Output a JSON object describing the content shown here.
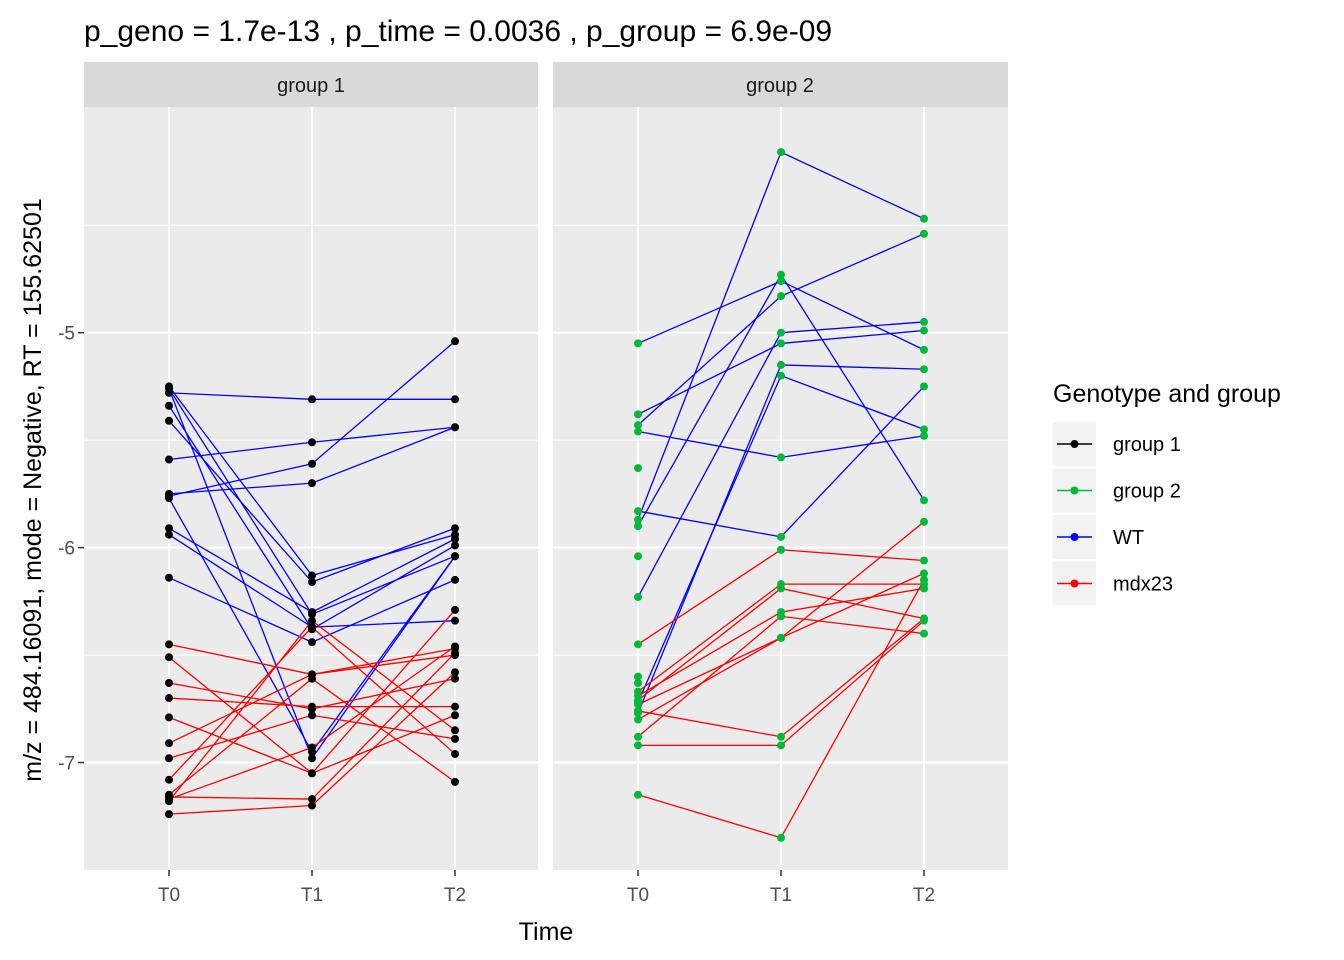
{
  "chart_data": {
    "type": "line",
    "title": "p_geno = 1.7e-13 , p_time = 0.0036 , p_group = 6.9e-09",
    "xlabel": "Time",
    "ylabel": "m/z = 484.16091, mode = Negative, RT = 155.62501",
    "ylim": [
      -7.5,
      -3.95
    ],
    "y_ticks": [
      -5,
      -6,
      -7
    ],
    "grid": true,
    "legend_position": "right",
    "x_categories": [
      "T0",
      "T1",
      "T2"
    ],
    "facets": [
      {
        "name": "group 1",
        "point_color": "#000000",
        "lines": [
          {
            "genotype": "WT",
            "values": [
              -5.28,
              -5.31,
              -5.31
            ]
          },
          {
            "genotype": "WT",
            "values": [
              -5.76,
              -5.61,
              -5.04
            ]
          },
          {
            "genotype": "WT",
            "values": [
              -5.59,
              -5.51,
              -5.44
            ]
          },
          {
            "genotype": "WT",
            "values": [
              -5.75,
              -5.7,
              -5.44
            ]
          },
          {
            "genotype": "WT",
            "values": [
              -5.25,
              -6.13,
              -5.94
            ]
          },
          {
            "genotype": "WT",
            "values": [
              -5.41,
              -6.16,
              -5.91
            ]
          },
          {
            "genotype": "WT",
            "values": [
              -5.26,
              -6.31,
              -6.04
            ]
          },
          {
            "genotype": "WT",
            "values": [
              -5.91,
              -6.3,
              -5.96
            ]
          },
          {
            "genotype": "WT",
            "values": [
              -5.34,
              -6.38,
              -5.99
            ]
          },
          {
            "genotype": "WT",
            "values": [
              -5.94,
              -6.37,
              -6.34
            ]
          },
          {
            "genotype": "WT",
            "values": [
              -5.77,
              -6.95,
              -6.04
            ]
          },
          {
            "genotype": "WT",
            "values": [
              -6.14,
              -6.44,
              -6.15
            ]
          },
          {
            "genotype": "WT",
            "values": [
              -5.26,
              -6.98,
              -6.04
            ]
          },
          {
            "genotype": "mdx23",
            "values": [
              -6.45,
              -6.59,
              -6.47
            ]
          },
          {
            "genotype": "mdx23",
            "values": [
              -6.51,
              -7.05,
              -6.78
            ]
          },
          {
            "genotype": "mdx23",
            "values": [
              -6.63,
              -6.75,
              -6.61
            ]
          },
          {
            "genotype": "mdx23",
            "values": [
              -6.7,
              -6.74,
              -6.74
            ]
          },
          {
            "genotype": "mdx23",
            "values": [
              -6.79,
              -7.05,
              -6.29
            ]
          },
          {
            "genotype": "mdx23",
            "values": [
              -6.91,
              -6.59,
              -6.5
            ]
          },
          {
            "genotype": "mdx23",
            "values": [
              -6.98,
              -6.78,
              -6.89
            ]
          },
          {
            "genotype": "mdx23",
            "values": [
              -7.08,
              -6.37,
              -6.96
            ]
          },
          {
            "genotype": "mdx23",
            "values": [
              -7.15,
              -6.61,
              -7.09
            ]
          },
          {
            "genotype": "mdx23",
            "values": [
              -7.17,
              -6.93,
              -6.46
            ]
          },
          {
            "genotype": "mdx23",
            "values": [
              -7.16,
              -7.17,
              -6.49
            ]
          },
          {
            "genotype": "mdx23",
            "values": [
              -7.24,
              -7.2,
              -6.58
            ]
          },
          {
            "genotype": "mdx23",
            "values": [
              -7.18,
              -6.34,
              -6.85
            ]
          }
        ]
      },
      {
        "name": "group 2",
        "point_color": "#00ba38",
        "lines": [
          {
            "genotype": "WT",
            "values": [
              -5.05,
              -4.76,
              -5.08
            ]
          },
          {
            "genotype": "WT",
            "values": [
              -5.38,
              -5.05,
              -4.99
            ]
          },
          {
            "genotype": "WT",
            "values": [
              -5.43,
              -4.83,
              -4.54
            ]
          },
          {
            "genotype": "WT",
            "values": [
              -5.46,
              -5.58,
              -5.48
            ]
          },
          {
            "genotype": "WT",
            "values": [
              -5.83,
              -5.95,
              -5.25
            ]
          },
          {
            "genotype": "WT",
            "values": [
              -5.87,
              -4.16,
              -4.47
            ]
          },
          {
            "genotype": "WT",
            "values": [
              -5.9,
              -4.73,
              -5.78
            ]
          },
          {
            "genotype": "WT",
            "values": [
              -6.23,
              -5.0,
              -4.95
            ]
          },
          {
            "genotype": "WT",
            "values": [
              -6.72,
              -5.2,
              -5.45
            ]
          },
          {
            "genotype": "WT",
            "values": [
              -6.77,
              -5.15,
              -5.17
            ]
          },
          {
            "genotype": "mdx23",
            "values": [
              -6.45,
              -6.01,
              -6.06
            ]
          },
          {
            "genotype": "mdx23",
            "values": [
              -6.67,
              -6.17,
              -6.17
            ]
          },
          {
            "genotype": "mdx23",
            "values": [
              -6.69,
              -6.3,
              -6.19
            ]
          },
          {
            "genotype": "mdx23",
            "values": [
              -6.73,
              -6.42,
              -5.88
            ]
          },
          {
            "genotype": "mdx23",
            "values": [
              -6.76,
              -6.88,
              -6.33
            ]
          },
          {
            "genotype": "mdx23",
            "values": [
              -6.8,
              -6.42,
              -6.12
            ]
          },
          {
            "genotype": "mdx23",
            "values": [
              -6.88,
              -6.32,
              -6.4
            ]
          },
          {
            "genotype": "mdx23",
            "values": [
              -6.92,
              -6.92,
              -6.34
            ]
          },
          {
            "genotype": "mdx23",
            "values": [
              -7.15,
              -7.35,
              -6.15
            ]
          },
          {
            "genotype": "mdx23",
            "values": [
              -6.71,
              -6.19,
              -6.33
            ]
          }
        ]
      }
    ],
    "extra_points": [
      {
        "facet": "group 2",
        "x": "T0",
        "y": -5.63
      },
      {
        "facet": "group 2",
        "x": "T0",
        "y": -6.04
      },
      {
        "facet": "group 2",
        "x": "T0",
        "y": -6.6
      },
      {
        "facet": "group 2",
        "x": "T0",
        "y": -6.63
      }
    ],
    "legend": {
      "title": "Genotype and group",
      "items": [
        {
          "label": "group 1",
          "color": "#000000"
        },
        {
          "label": "group 2",
          "color": "#00ba38"
        },
        {
          "label": "WT",
          "color": "#0000ff"
        },
        {
          "label": "mdx23",
          "color": "#ff0000"
        }
      ]
    },
    "colors": {
      "WT": "#0000ff",
      "mdx23": "#ff0000",
      "panel_bg": "#ebebeb",
      "strip_bg": "#d9d9d9",
      "grid": "#ffffff"
    }
  }
}
